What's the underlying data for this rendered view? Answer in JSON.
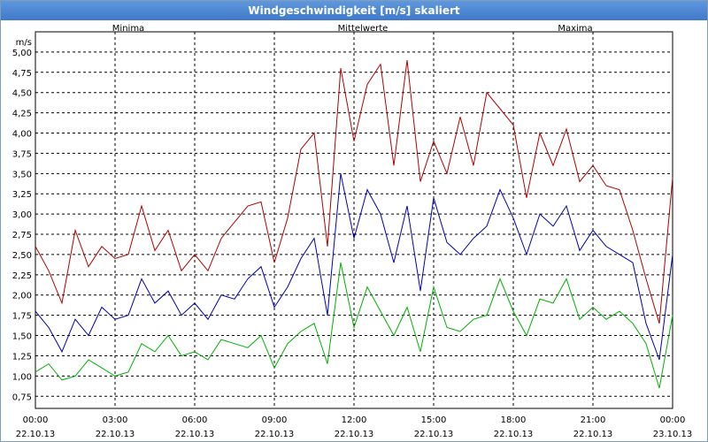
{
  "window": {
    "title": "Windgeschwindigkeit [m/s] skaliert"
  },
  "chart_data": {
    "type": "line",
    "title": "Windgeschwindigkeit [m/s] skaliert",
    "ylabel": "m/s",
    "xlabel": "",
    "ylim": [
      0.6,
      5.25
    ],
    "xlim": [
      0,
      24
    ],
    "grid": true,
    "legend": "top",
    "y_ticks": [
      "0,75",
      "1,00",
      "1,25",
      "1,50",
      "1,75",
      "2,00",
      "2,25",
      "2,50",
      "2,75",
      "3,00",
      "3,25",
      "3,50",
      "3,75",
      "4,00",
      "4,25",
      "4,50",
      "4,75",
      "5,00"
    ],
    "x_ticks": [
      {
        "time": "00:00",
        "date": "22.10.13"
      },
      {
        "time": "03:00",
        "date": "22.10.13"
      },
      {
        "time": "06:00",
        "date": "22.10.13"
      },
      {
        "time": "09:00",
        "date": "22.10.13"
      },
      {
        "time": "12:00",
        "date": "22.10.13"
      },
      {
        "time": "15:00",
        "date": "22.10.13"
      },
      {
        "time": "18:00",
        "date": "22.10.13"
      },
      {
        "time": "21:00",
        "date": "22.10.13"
      },
      {
        "time": "00:00",
        "date": "23.10.13"
      }
    ],
    "series": [
      {
        "name": "Minima",
        "color": "#00b000",
        "x": [
          0,
          0.5,
          1,
          1.5,
          2,
          2.5,
          3,
          3.5,
          4,
          4.5,
          5,
          5.5,
          6,
          6.5,
          7,
          7.5,
          8,
          8.5,
          9,
          9.5,
          10,
          10.5,
          11,
          11.5,
          12,
          12.5,
          13,
          13.5,
          14,
          14.5,
          15,
          15.5,
          16,
          16.5,
          17,
          17.5,
          18,
          18.5,
          19,
          19.5,
          20,
          20.5,
          21,
          21.5,
          22,
          22.5,
          23,
          23.5,
          24
        ],
        "values": [
          1.05,
          1.15,
          0.95,
          1.0,
          1.2,
          1.1,
          1.0,
          1.05,
          1.4,
          1.3,
          1.5,
          1.25,
          1.3,
          1.2,
          1.45,
          1.4,
          1.35,
          1.5,
          1.1,
          1.4,
          1.55,
          1.65,
          1.15,
          2.4,
          1.6,
          2.1,
          1.8,
          1.5,
          1.85,
          1.3,
          2.1,
          1.6,
          1.55,
          1.7,
          1.75,
          2.2,
          1.8,
          1.5,
          1.95,
          1.9,
          2.2,
          1.7,
          1.85,
          1.7,
          1.8,
          1.65,
          1.4,
          0.85,
          1.75
        ]
      },
      {
        "name": "Mittelwerte",
        "color": "#0000b0",
        "x": [
          0,
          0.5,
          1,
          1.5,
          2,
          2.5,
          3,
          3.5,
          4,
          4.5,
          5,
          5.5,
          6,
          6.5,
          7,
          7.5,
          8,
          8.5,
          9,
          9.5,
          10,
          10.5,
          11,
          11.5,
          12,
          12.5,
          13,
          13.5,
          14,
          14.5,
          15,
          15.5,
          16,
          16.5,
          17,
          17.5,
          18,
          18.5,
          19,
          19.5,
          20,
          20.5,
          21,
          21.5,
          22,
          22.5,
          23,
          23.5,
          24
        ],
        "values": [
          1.8,
          1.6,
          1.3,
          1.7,
          1.5,
          1.85,
          1.7,
          1.75,
          2.2,
          1.9,
          2.05,
          1.75,
          1.9,
          1.7,
          2.0,
          1.95,
          2.2,
          2.35,
          1.85,
          2.1,
          2.45,
          2.7,
          1.75,
          3.5,
          2.7,
          3.3,
          3.0,
          2.4,
          3.1,
          2.05,
          3.2,
          2.65,
          2.5,
          2.7,
          2.85,
          3.3,
          2.95,
          2.5,
          3.0,
          2.85,
          3.1,
          2.55,
          2.8,
          2.6,
          2.5,
          2.4,
          1.65,
          1.2,
          2.5
        ]
      },
      {
        "name": "Maxima",
        "color": "#b00000",
        "x": [
          0,
          0.5,
          1,
          1.5,
          2,
          2.5,
          3,
          3.5,
          4,
          4.5,
          5,
          5.5,
          6,
          6.5,
          7,
          7.5,
          8,
          8.5,
          9,
          9.5,
          10,
          10.5,
          11,
          11.5,
          12,
          12.5,
          13,
          13.5,
          14,
          14.5,
          15,
          15.5,
          16,
          16.5,
          17,
          17.5,
          18,
          18.5,
          19,
          19.5,
          20,
          20.5,
          21,
          21.5,
          22,
          22.5,
          23,
          23.5,
          24
        ],
        "values": [
          2.6,
          2.3,
          1.9,
          2.8,
          2.35,
          2.6,
          2.45,
          2.5,
          3.1,
          2.55,
          2.8,
          2.3,
          2.5,
          2.3,
          2.7,
          2.9,
          3.1,
          3.15,
          2.4,
          2.95,
          3.8,
          4.0,
          2.6,
          4.8,
          3.9,
          4.6,
          4.85,
          3.6,
          4.9,
          3.4,
          3.9,
          3.5,
          4.2,
          3.6,
          4.5,
          4.3,
          4.1,
          3.2,
          4.0,
          3.6,
          4.05,
          3.4,
          3.6,
          3.35,
          3.3,
          2.8,
          2.2,
          1.65,
          3.45
        ]
      }
    ]
  }
}
